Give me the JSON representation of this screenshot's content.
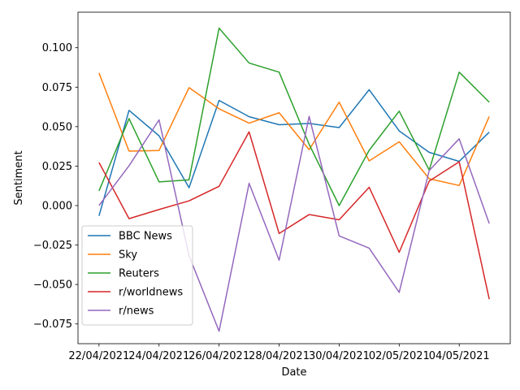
{
  "chart_data": {
    "type": "line",
    "xlabel": "Date",
    "ylabel": "Sentiment",
    "x": [
      "22/04/2021",
      "23/04/2021",
      "24/04/2021",
      "25/04/2021",
      "26/04/2021",
      "27/04/2021",
      "28/04/2021",
      "29/04/2021",
      "30/04/2021",
      "01/05/2021",
      "02/05/2021",
      "03/05/2021",
      "04/05/2021",
      "05/05/2021"
    ],
    "x_ticks": [
      "22/04/2021",
      "24/04/2021",
      "26/04/2021",
      "28/04/2021",
      "30/04/2021",
      "02/05/2021",
      "04/05/2021"
    ],
    "x_tick_index": [
      0,
      2,
      4,
      6,
      8,
      10,
      12
    ],
    "x_range": [
      -0.7,
      13.7
    ],
    "ylim": [
      -0.0875,
      0.1225
    ],
    "y_ticks": [
      -0.075,
      -0.05,
      -0.025,
      0.0,
      0.025,
      0.05,
      0.075,
      0.1
    ],
    "y_tick_labels": [
      "−0.075",
      "−0.050",
      "−0.025",
      "0.000",
      "0.025",
      "0.050",
      "0.075",
      "0.100"
    ],
    "grid": false,
    "legend_position": "lower-left",
    "series": [
      {
        "name": "BBC News",
        "color": "#1f77b4",
        "values": [
          -0.0065,
          0.0603,
          0.0442,
          0.0113,
          0.0666,
          0.0563,
          0.0512,
          0.052,
          0.0494,
          0.0734,
          0.0473,
          0.0337,
          0.028,
          0.0465
        ]
      },
      {
        "name": "Sky",
        "color": "#ff7f0e",
        "values": [
          0.084,
          0.0345,
          0.0349,
          0.0747,
          0.0613,
          0.0522,
          0.0588,
          0.0354,
          0.0655,
          0.0283,
          0.0404,
          0.017,
          0.0127,
          0.0564
        ]
      },
      {
        "name": "Reuters",
        "color": "#2ca02c",
        "values": [
          0.0093,
          0.0551,
          0.015,
          0.0163,
          0.1124,
          0.0903,
          0.0845,
          0.0388,
          0.0,
          0.035,
          0.0598,
          0.0225,
          0.0845,
          0.0655
        ]
      },
      {
        "name": "r/worldnews",
        "color": "#d62728",
        "values": [
          0.0273,
          -0.0083,
          -0.0025,
          0.003,
          0.0122,
          0.0467,
          -0.0177,
          -0.0057,
          -0.009,
          0.0116,
          -0.0296,
          0.0155,
          0.0277,
          -0.0593
        ]
      },
      {
        "name": "r/news",
        "color": "#9467bd",
        "values": [
          0.0,
          0.0252,
          0.0543,
          -0.0318,
          -0.0796,
          0.0141,
          -0.0346,
          0.0565,
          -0.0192,
          -0.027,
          -0.055,
          0.0222,
          0.0423,
          -0.0114
        ]
      }
    ]
  }
}
